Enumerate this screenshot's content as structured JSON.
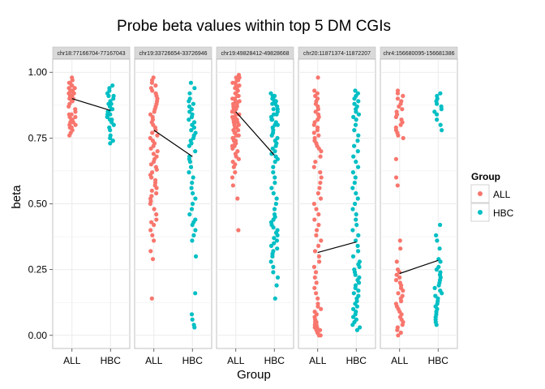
{
  "chart_data": {
    "type": "scatter",
    "title": "Probe beta values within top 5 DM CGIs",
    "xlabel": "Group",
    "ylabel": "beta",
    "ylim": [
      -0.05,
      1.05
    ],
    "yticks": [
      0.0,
      0.25,
      0.5,
      0.75,
      1.0
    ],
    "ytick_labels": [
      "0.00",
      "0.25",
      "0.50",
      "0.75",
      "1.00"
    ],
    "categories": [
      "ALL",
      "HBC"
    ],
    "legend": {
      "title": "Group",
      "placement": "right",
      "entries": [
        {
          "label": "ALL",
          "color": "#F8766D"
        },
        {
          "label": "HBC",
          "color": "#00BFC4"
        }
      ]
    },
    "colors": {
      "ALL": "#F8766D",
      "HBC": "#00BFC4",
      "panel_bg": "#FFFFFF",
      "strip_bg": "#D9D9D9",
      "grid": "#EBEBEB",
      "mean_line": "#000000"
    },
    "grid": true,
    "facets": [
      {
        "label": "chr18:77166704-77167043",
        "mean": {
          "ALL": 0.9,
          "HBC": 0.855
        },
        "series": [
          {
            "name": "ALL",
            "values": [
              0.98,
              0.97,
              0.96,
              0.96,
              0.95,
              0.95,
              0.94,
              0.94,
              0.93,
              0.93,
              0.93,
              0.92,
              0.92,
              0.92,
              0.91,
              0.91,
              0.9,
              0.9,
              0.89,
              0.89,
              0.88,
              0.87,
              0.86,
              0.85,
              0.84,
              0.84,
              0.83,
              0.83,
              0.82,
              0.82,
              0.81,
              0.81,
              0.8,
              0.8,
              0.79,
              0.79,
              0.78,
              0.77,
              0.76
            ]
          },
          {
            "name": "HBC",
            "values": [
              0.95,
              0.94,
              0.93,
              0.92,
              0.91,
              0.91,
              0.9,
              0.89,
              0.88,
              0.88,
              0.87,
              0.86,
              0.86,
              0.85,
              0.85,
              0.84,
              0.84,
              0.83,
              0.82,
              0.82,
              0.81,
              0.8,
              0.79,
              0.78,
              0.76,
              0.75,
              0.74,
              0.73
            ]
          }
        ]
      },
      {
        "label": "chr19:33726654-33726946",
        "mean": {
          "ALL": 0.78,
          "HBC": 0.68
        },
        "series": [
          {
            "name": "ALL",
            "values": [
              0.98,
              0.97,
              0.96,
              0.95,
              0.94,
              0.93,
              0.92,
              0.91,
              0.9,
              0.89,
              0.88,
              0.87,
              0.86,
              0.85,
              0.84,
              0.83,
              0.82,
              0.81,
              0.8,
              0.79,
              0.78,
              0.77,
              0.76,
              0.75,
              0.74,
              0.73,
              0.72,
              0.71,
              0.7,
              0.69,
              0.68,
              0.67,
              0.66,
              0.65,
              0.64,
              0.63,
              0.62,
              0.61,
              0.6,
              0.59,
              0.58,
              0.57,
              0.56,
              0.55,
              0.54,
              0.53,
              0.52,
              0.51,
              0.5,
              0.48,
              0.46,
              0.44,
              0.43,
              0.42,
              0.4,
              0.38,
              0.36,
              0.32,
              0.29,
              0.14
            ]
          },
          {
            "name": "HBC",
            "values": [
              0.96,
              0.94,
              0.92,
              0.9,
              0.89,
              0.88,
              0.87,
              0.86,
              0.85,
              0.84,
              0.83,
              0.82,
              0.81,
              0.8,
              0.79,
              0.78,
              0.77,
              0.76,
              0.75,
              0.74,
              0.73,
              0.72,
              0.7,
              0.68,
              0.67,
              0.66,
              0.64,
              0.62,
              0.6,
              0.58,
              0.56,
              0.54,
              0.52,
              0.5,
              0.48,
              0.46,
              0.44,
              0.43,
              0.42,
              0.4,
              0.38,
              0.36,
              0.3,
              0.16,
              0.08,
              0.06,
              0.04,
              0.03
            ]
          }
        ]
      },
      {
        "label": "chr19:49828412-49828668",
        "mean": {
          "ALL": 0.85,
          "HBC": 0.685
        },
        "series": [
          {
            "name": "ALL",
            "values": [
              0.99,
              0.98,
              0.98,
              0.97,
              0.97,
              0.96,
              0.96,
              0.95,
              0.95,
              0.94,
              0.94,
              0.93,
              0.93,
              0.92,
              0.92,
              0.91,
              0.91,
              0.9,
              0.9,
              0.89,
              0.89,
              0.88,
              0.88,
              0.87,
              0.87,
              0.86,
              0.86,
              0.85,
              0.85,
              0.84,
              0.84,
              0.83,
              0.83,
              0.82,
              0.82,
              0.81,
              0.81,
              0.8,
              0.8,
              0.79,
              0.79,
              0.78,
              0.78,
              0.77,
              0.77,
              0.76,
              0.76,
              0.75,
              0.75,
              0.74,
              0.74,
              0.73,
              0.73,
              0.72,
              0.72,
              0.71,
              0.7,
              0.69,
              0.68,
              0.67,
              0.66,
              0.65,
              0.64,
              0.62,
              0.6,
              0.57,
              0.52,
              0.4
            ]
          },
          {
            "name": "HBC",
            "values": [
              0.92,
              0.91,
              0.91,
              0.9,
              0.9,
              0.89,
              0.89,
              0.88,
              0.88,
              0.87,
              0.86,
              0.86,
              0.85,
              0.84,
              0.84,
              0.83,
              0.82,
              0.82,
              0.81,
              0.8,
              0.8,
              0.79,
              0.78,
              0.77,
              0.76,
              0.75,
              0.74,
              0.73,
              0.72,
              0.71,
              0.7,
              0.69,
              0.68,
              0.67,
              0.66,
              0.64,
              0.62,
              0.6,
              0.58,
              0.56,
              0.54,
              0.52,
              0.5,
              0.48,
              0.46,
              0.45,
              0.44,
              0.43,
              0.42,
              0.41,
              0.4,
              0.39,
              0.38,
              0.37,
              0.36,
              0.35,
              0.34,
              0.33,
              0.32,
              0.31,
              0.3,
              0.28,
              0.26,
              0.24,
              0.22,
              0.19,
              0.14
            ]
          }
        ]
      },
      {
        "label": "chr20:11871374-11872207",
        "mean": {
          "ALL": 0.315,
          "HBC": 0.355
        },
        "series": [
          {
            "name": "ALL",
            "values": [
              0.98,
              0.93,
              0.92,
              0.91,
              0.9,
              0.89,
              0.88,
              0.87,
              0.86,
              0.85,
              0.84,
              0.83,
              0.82,
              0.81,
              0.8,
              0.79,
              0.78,
              0.77,
              0.76,
              0.75,
              0.74,
              0.73,
              0.72,
              0.71,
              0.7,
              0.68,
              0.66,
              0.64,
              0.62,
              0.6,
              0.58,
              0.56,
              0.54,
              0.52,
              0.5,
              0.48,
              0.46,
              0.44,
              0.42,
              0.4,
              0.38,
              0.36,
              0.34,
              0.32,
              0.3,
              0.28,
              0.26,
              0.24,
              0.22,
              0.2,
              0.18,
              0.16,
              0.14,
              0.12,
              0.11,
              0.1,
              0.09,
              0.08,
              0.07,
              0.06,
              0.05,
              0.05,
              0.04,
              0.04,
              0.03,
              0.03,
              0.02,
              0.02,
              0.01,
              0.01,
              0.0,
              0.0
            ]
          },
          {
            "name": "HBC",
            "values": [
              0.93,
              0.92,
              0.91,
              0.9,
              0.89,
              0.88,
              0.87,
              0.86,
              0.85,
              0.84,
              0.83,
              0.82,
              0.8,
              0.78,
              0.76,
              0.74,
              0.72,
              0.7,
              0.68,
              0.66,
              0.64,
              0.62,
              0.6,
              0.58,
              0.56,
              0.54,
              0.52,
              0.5,
              0.48,
              0.46,
              0.44,
              0.42,
              0.4,
              0.38,
              0.36,
              0.34,
              0.32,
              0.3,
              0.28,
              0.27,
              0.26,
              0.25,
              0.24,
              0.23,
              0.22,
              0.21,
              0.2,
              0.19,
              0.18,
              0.17,
              0.16,
              0.15,
              0.14,
              0.13,
              0.12,
              0.11,
              0.1,
              0.09,
              0.08,
              0.07,
              0.06,
              0.05,
              0.04,
              0.03,
              0.02
            ]
          }
        ]
      },
      {
        "label": "chr4:156680095-156681386",
        "mean": {
          "ALL": 0.235,
          "HBC": 0.285
        },
        "series": [
          {
            "name": "ALL",
            "values": [
              0.93,
              0.92,
              0.91,
              0.9,
              0.89,
              0.88,
              0.87,
              0.86,
              0.85,
              0.84,
              0.83,
              0.82,
              0.81,
              0.8,
              0.79,
              0.78,
              0.77,
              0.76,
              0.75,
              0.67,
              0.6,
              0.57,
              0.36,
              0.33,
              0.28,
              0.25,
              0.24,
              0.23,
              0.22,
              0.21,
              0.2,
              0.19,
              0.18,
              0.17,
              0.16,
              0.15,
              0.14,
              0.13,
              0.12,
              0.11,
              0.1,
              0.09,
              0.08,
              0.07,
              0.06,
              0.05,
              0.04,
              0.03,
              0.02,
              0.01,
              0.0
            ]
          },
          {
            "name": "HBC",
            "values": [
              0.92,
              0.91,
              0.9,
              0.89,
              0.88,
              0.87,
              0.86,
              0.85,
              0.84,
              0.82,
              0.8,
              0.78,
              0.42,
              0.38,
              0.36,
              0.33,
              0.29,
              0.28,
              0.26,
              0.25,
              0.24,
              0.23,
              0.22,
              0.21,
              0.2,
              0.19,
              0.18,
              0.17,
              0.16,
              0.15,
              0.14,
              0.13,
              0.12,
              0.11,
              0.1,
              0.09,
              0.08,
              0.07,
              0.06,
              0.05,
              0.04
            ]
          }
        ]
      }
    ]
  }
}
